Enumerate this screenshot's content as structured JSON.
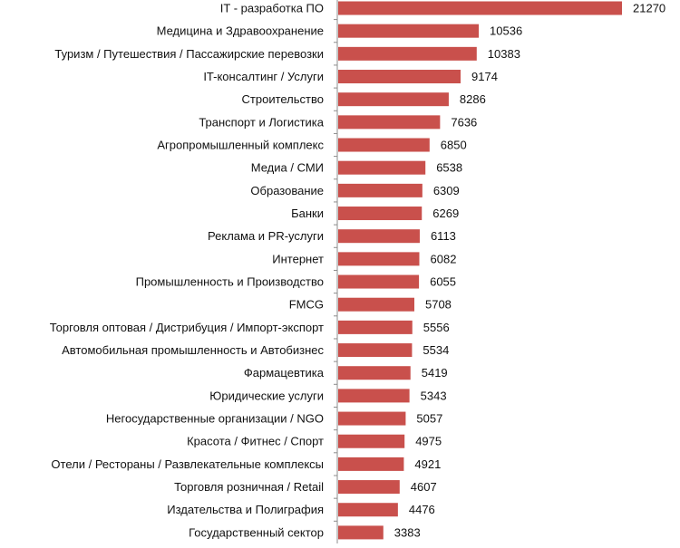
{
  "chart_data": {
    "type": "bar",
    "orientation": "horizontal",
    "title": "",
    "xlabel": "",
    "ylabel": "",
    "grid": false,
    "legend": "none",
    "bar_color": "#c9504c",
    "axis_color": "#8c8c8c",
    "xlim": [
      0,
      21270
    ],
    "categories": [
      "IT - разработка ПО",
      "Медицина и Здравоохранение",
      "Туризм / Путешествия / Пассажирские перевозки",
      "IT-консалтинг / Услуги",
      "Строительство",
      "Транспорт и Логистика",
      "Агропромышленный комплекс",
      "Медиа / СМИ",
      "Образование",
      "Банки",
      "Реклама и PR-услуги",
      "Интернет",
      "Промышленность и Производство",
      "FMCG",
      "Торговля оптовая / Дистрибуция / Импорт-экспорт",
      "Автомобильная промышленность и Автобизнес",
      "Фармацевтика",
      "Юридические услуги",
      "Негосударственные организации / NGO",
      "Красота / Фитнес / Спорт",
      "Отели / Рестораны / Развлекательные комплексы",
      "Торговля розничная / Retail",
      "Издательства и Полиграфия",
      "Государственный сектор"
    ],
    "values": [
      21270,
      10536,
      10383,
      9174,
      8286,
      7636,
      6850,
      6538,
      6309,
      6269,
      6113,
      6082,
      6055,
      5708,
      5556,
      5534,
      5419,
      5343,
      5057,
      4975,
      4921,
      4607,
      4476,
      3383
    ],
    "value_labels": [
      "21270",
      "10536",
      "10383",
      "9174",
      "8286",
      "7636",
      "6850",
      "6538",
      "6309",
      "6269",
      "6113",
      "6082",
      "6055",
      "5708",
      "5556",
      "5534",
      "5419",
      "5343",
      "5057",
      "4975",
      "4921",
      "4607",
      "4476",
      "3383"
    ]
  }
}
